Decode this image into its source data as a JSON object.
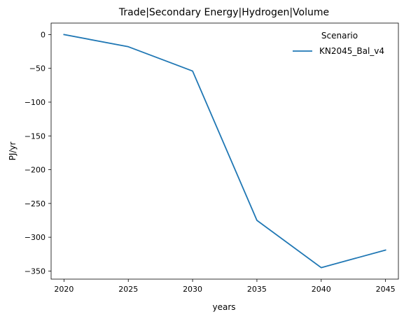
{
  "chart_data": {
    "type": "line",
    "title": "Trade|Secondary Energy|Hydrogen|Volume",
    "xlabel": "years",
    "ylabel": "PJ/yr",
    "x": [
      2020,
      2025,
      2030,
      2035,
      2040,
      2045
    ],
    "xticks": [
      "2020",
      "2025",
      "2030",
      "2035",
      "2040",
      "2045"
    ],
    "yticks": [
      0,
      -50,
      -100,
      -150,
      -200,
      -250,
      -300,
      -350
    ],
    "ytick_labels": [
      "0",
      "−50",
      "−100",
      "−150",
      "−200",
      "−250",
      "−300",
      "−350"
    ],
    "xlim": [
      2019,
      2046
    ],
    "ylim": [
      -362,
      17
    ],
    "grid": false,
    "legend": {
      "title": "Scenario",
      "placement": "top-right"
    },
    "series": [
      {
        "name": "KN2045_Bal_v4",
        "color": "#1f77b4",
        "values": [
          0,
          -18,
          -54,
          -275,
          -345,
          -319
        ]
      }
    ]
  }
}
